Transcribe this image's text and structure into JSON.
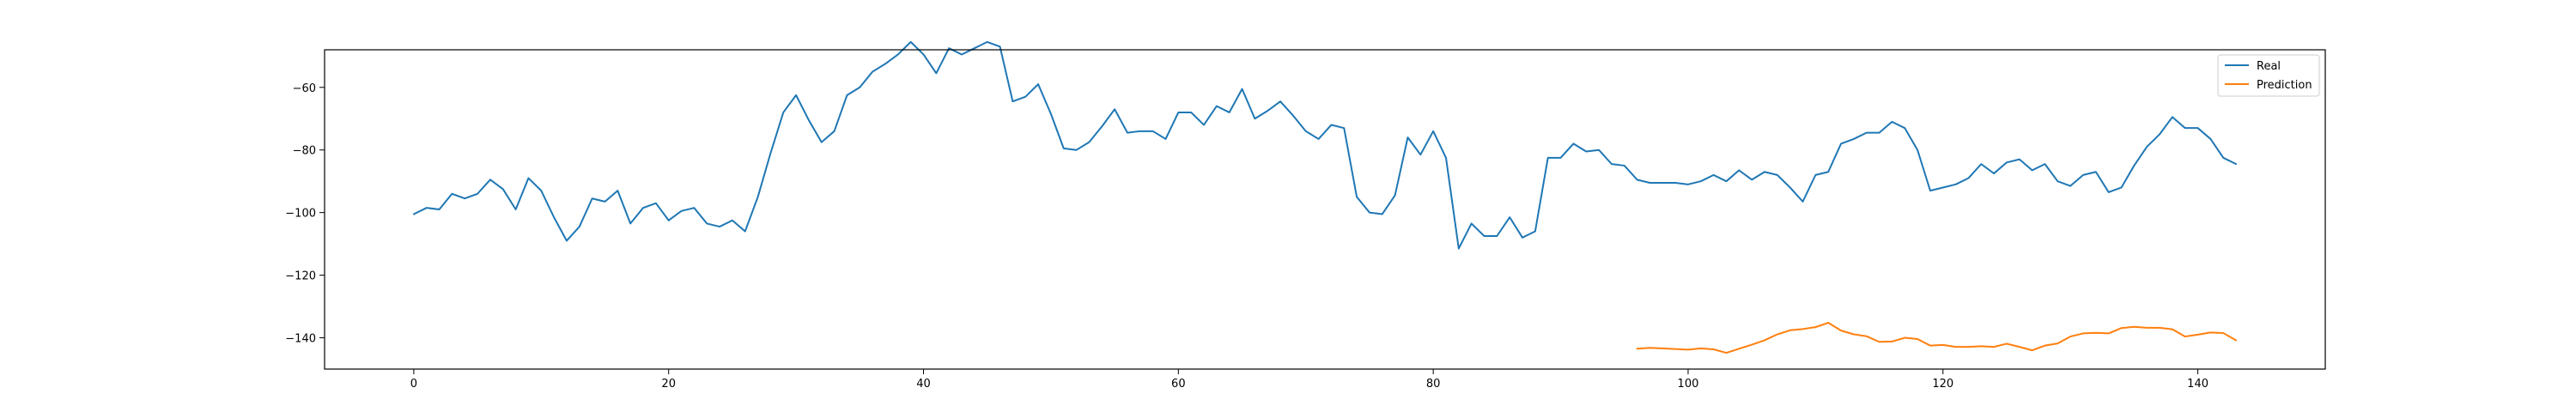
{
  "chart_data": {
    "type": "line",
    "title": "",
    "xlabel": "",
    "ylabel": "",
    "xlim": [
      -7,
      150
    ],
    "ylim": [
      -150,
      -48
    ],
    "xticks": [
      0,
      20,
      40,
      60,
      80,
      100,
      120,
      140
    ],
    "yticks": [
      -140,
      -120,
      -100,
      -80,
      -60
    ],
    "grid": false,
    "legend_position": "top-right",
    "series": [
      {
        "name": "Real",
        "color": "#1f77b4",
        "x_start": 0,
        "values": [
          -100.5,
          -98.5,
          -99,
          -94,
          -95.5,
          -94,
          -89.5,
          -92.5,
          -99,
          -89,
          -93,
          -101.5,
          -109,
          -104.5,
          -95.5,
          -96.5,
          -93,
          -103.5,
          -98.5,
          -97,
          -102.5,
          -99.5,
          -98.5,
          -103.5,
          -104.5,
          -102.5,
          -106,
          -95,
          -81,
          -68,
          -62.5,
          -70.5,
          -77.5,
          -74,
          -62.5,
          -60,
          -55,
          -52.5,
          -49.5,
          -45.5,
          -49.5,
          -55.5,
          -47.5,
          -49.5,
          -47.5,
          -45.5,
          -47,
          -64.5,
          -63,
          -59,
          -68.5,
          -79.5,
          -80,
          -77.5,
          -72.5,
          -67,
          -74.5,
          -74,
          -74,
          -76.5,
          -68,
          -68,
          -72,
          -66,
          -68,
          -60.5,
          -70,
          -67.5,
          -64.5,
          -69,
          -74,
          -76.5,
          -72,
          -73,
          -95,
          -100,
          -100.5,
          -94.5,
          -76,
          -81.5,
          -74,
          -82.5,
          -111.5,
          -103.5,
          -107.5,
          -107.5,
          -101.5,
          -108,
          -106,
          -82.5,
          -82.5,
          -78,
          -80.5,
          -80,
          -84.5,
          -85,
          -89.5,
          -90.5,
          -90.5,
          -90.5,
          -91,
          -90,
          -88,
          -90,
          -86.5,
          -89.5,
          -87,
          -88,
          -92,
          -96.5,
          -88,
          -87,
          -78,
          -76.5,
          -74.5,
          -74.5,
          -71,
          -73,
          -80,
          -93,
          -92,
          -91,
          -89,
          -84.5,
          -87.5,
          -84,
          -83,
          -86.5,
          -84.5,
          -90,
          -91.5,
          -88,
          -87,
          -93.5,
          -92,
          -85,
          -79,
          -75,
          -69.5,
          -73,
          -73,
          -76.5,
          -82.5,
          -84.5
        ]
      },
      {
        "name": "Prediction",
        "color": "#ff7f0e",
        "x_start": 96,
        "values": [
          -143.5,
          -143.2,
          -143.4,
          -143.6,
          -143.8,
          -143.4,
          -143.7,
          -144.8,
          -143.5,
          -142.2,
          -140.8,
          -138.9,
          -137.6,
          -137.2,
          -136.6,
          -135.2,
          -137.7,
          -138.9,
          -139.5,
          -141.3,
          -141.2,
          -140,
          -140.4,
          -142.5,
          -142.3,
          -142.9,
          -142.9,
          -142.7,
          -142.9,
          -141.9,
          -142.9,
          -144,
          -142.5,
          -141.8,
          -139.6,
          -138.6,
          -138.4,
          -138.6,
          -136.9,
          -136.5,
          -136.8,
          -136.8,
          -137.3,
          -139.6,
          -139,
          -138.3,
          -138.5,
          -140.8
        ]
      }
    ]
  }
}
